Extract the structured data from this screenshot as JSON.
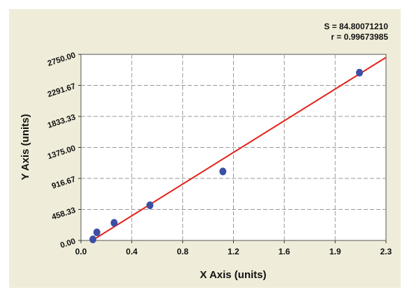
{
  "stats": {
    "s_line": "S = 84.80071210",
    "r_line": "r = 0.99673985"
  },
  "chart_data": {
    "type": "scatter",
    "xlabel": "X Axis (units)",
    "ylabel": "Y Axis (units)",
    "xlim": [
      0.0,
      2.3
    ],
    "ylim": [
      0.0,
      2750.0
    ],
    "x_ticks": [
      "0.0",
      "0.4",
      "0.8",
      "1.2",
      "1.6",
      "1.9",
      "2.3"
    ],
    "x_tick_values": [
      0.0,
      0.383,
      0.767,
      1.15,
      1.533,
      1.917,
      2.3
    ],
    "y_ticks": [
      "0.00",
      "458.33",
      "916.67",
      "1375.00",
      "1833.33",
      "2291.67",
      "2750.00"
    ],
    "y_tick_values": [
      0.0,
      458.33,
      916.67,
      1375.0,
      1833.33,
      2291.67,
      2750.0
    ],
    "grid": true,
    "series": [
      {
        "points": [
          {
            "x": 0.09,
            "y": 15
          },
          {
            "x": 0.12,
            "y": 120
          },
          {
            "x": 0.25,
            "y": 260
          },
          {
            "x": 0.52,
            "y": 520
          },
          {
            "x": 1.07,
            "y": 1020
          },
          {
            "x": 2.1,
            "y": 2480
          }
        ],
        "color": "#3b4fa5"
      }
    ],
    "fit_line": {
      "x": [
        0.085,
        2.3
      ],
      "y": [
        0,
        2705
      ],
      "color": "#e2231a"
    }
  }
}
